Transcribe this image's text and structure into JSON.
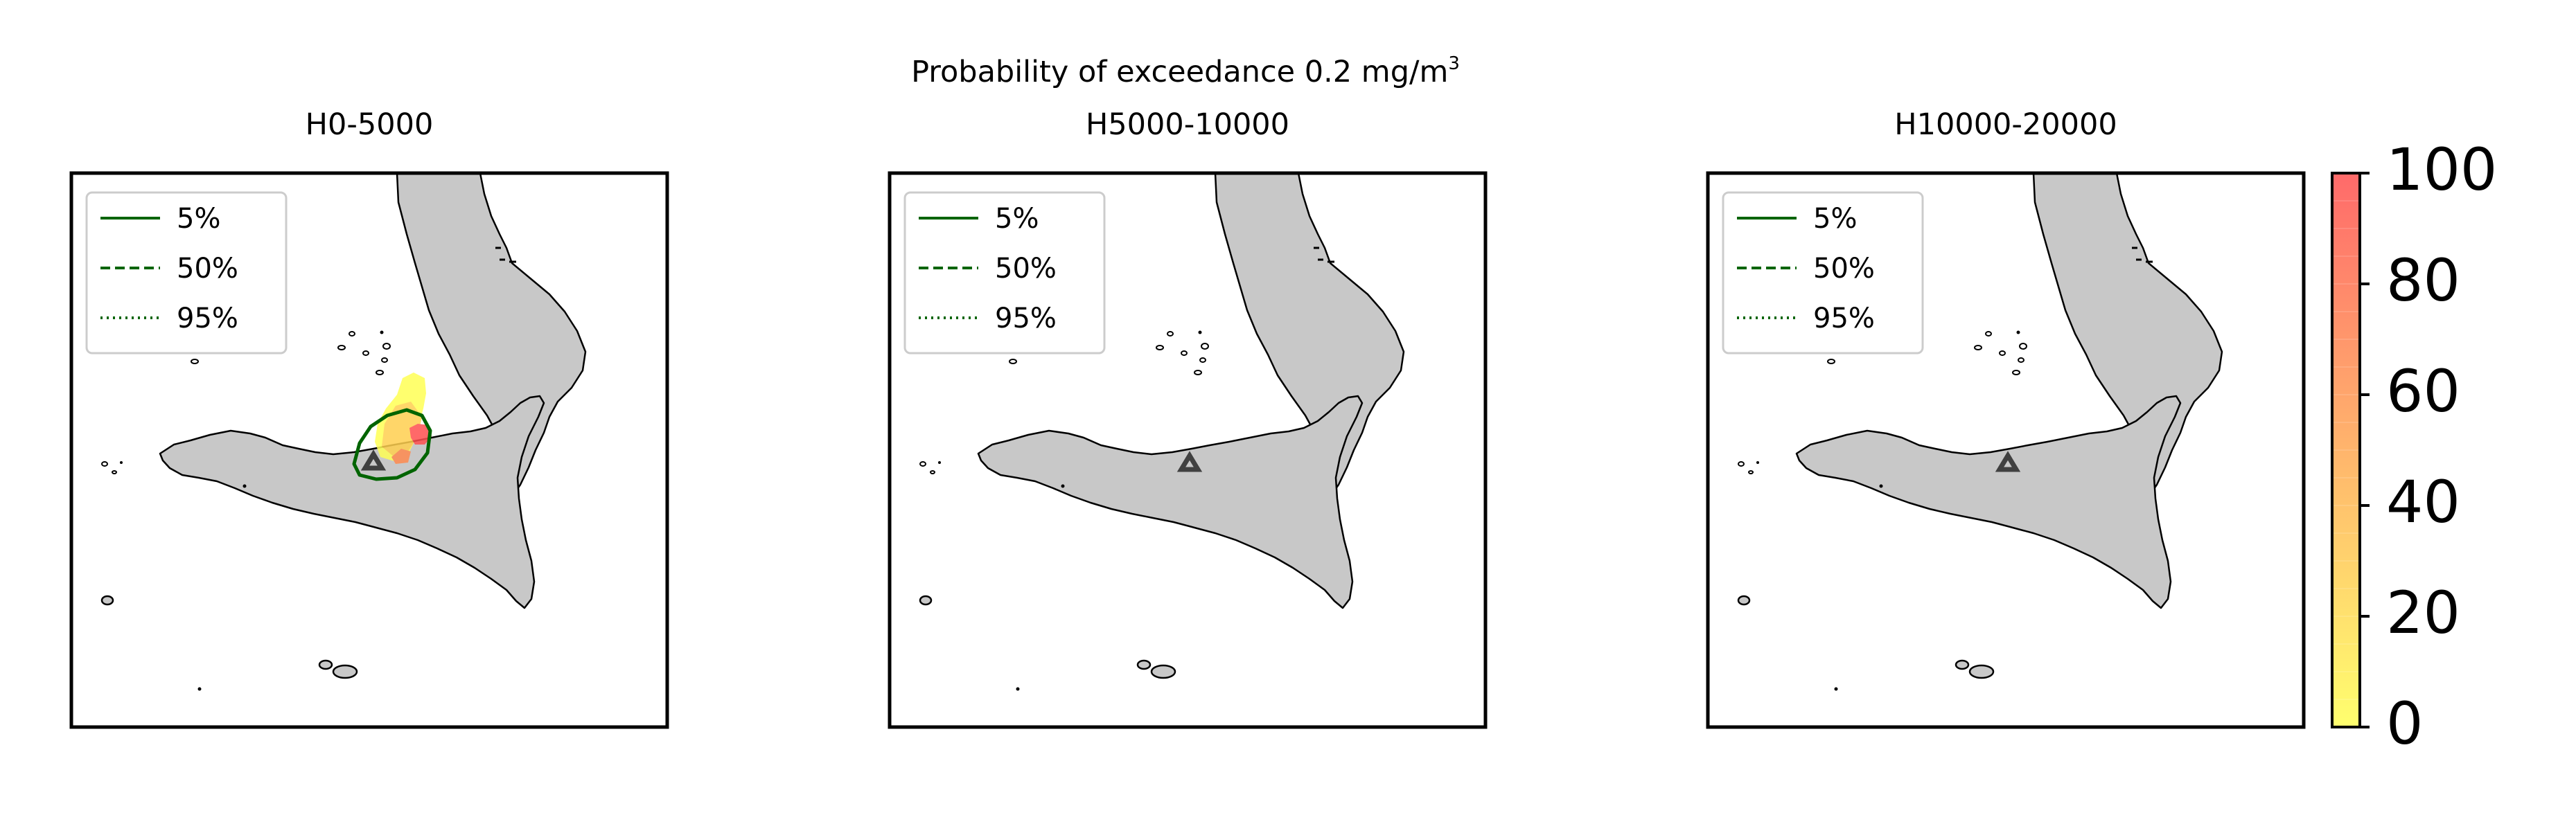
{
  "figure": {
    "suptitle": {
      "text": "Probability of exceedance 0.2 mg/m",
      "superscript": "3"
    }
  },
  "panels": [
    {
      "title": "H0-5000",
      "has_plume": true
    },
    {
      "title": "H5000-10000",
      "has_plume": false
    },
    {
      "title": "H10000-20000",
      "has_plume": false
    }
  ],
  "legend": {
    "entries": [
      {
        "label": "5%",
        "linestyle": "solid"
      },
      {
        "label": "50%",
        "linestyle": "dashed"
      },
      {
        "label": "95%",
        "linestyle": "dotted"
      }
    ],
    "position": "upper-left"
  },
  "colorbar": {
    "ticks": [
      "100",
      "80",
      "60",
      "40",
      "20",
      "0"
    ],
    "range": [
      0,
      100
    ],
    "colormap": [
      "#ffff55",
      "#ff5050"
    ],
    "alpha": "semi-transparent"
  },
  "colors": {
    "land": "#c8c8c8",
    "coast": "#000000",
    "contour": "#006400",
    "vent_marker": "#404040",
    "frame": "#000000"
  },
  "icons": {
    "vent": "triangle-up-icon"
  }
}
